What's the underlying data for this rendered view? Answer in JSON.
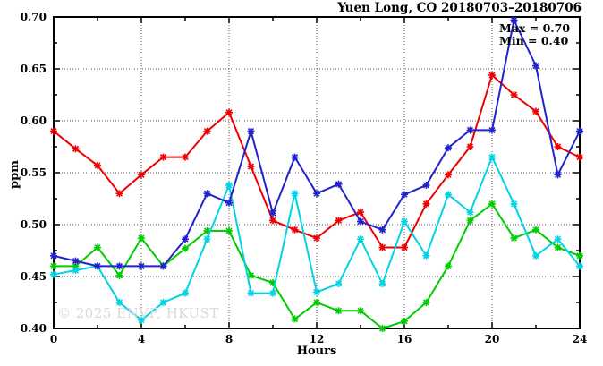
{
  "watermark": "© 2025 ENVF, HKUST",
  "chart_data": {
    "type": "line",
    "title": "Yuen Long, CO 20180703–20180706",
    "xlabel": "Hours",
    "ylabel": "ppm",
    "xlim": [
      0,
      24
    ],
    "ylim": [
      0.4,
      0.7
    ],
    "x_major_ticks": [
      0,
      4,
      8,
      12,
      16,
      20,
      24
    ],
    "x_minor_ticks": [
      2,
      6,
      10,
      14,
      18,
      22
    ],
    "y_major_ticks": [
      0.4,
      0.45,
      0.5,
      0.55,
      0.6,
      0.65,
      0.7
    ],
    "y_minor_ticks": [
      0.425,
      0.475,
      0.525,
      0.575,
      0.625,
      0.675
    ],
    "grid": {
      "style": "dotted",
      "color": "#555555",
      "x_lines": [
        4,
        8,
        12,
        16,
        20
      ],
      "y_lines": [
        0.45,
        0.5,
        0.55,
        0.6,
        0.65
      ]
    },
    "legend": "none",
    "marker": "asterisk",
    "annotations": [
      "Max = 0.70",
      "Min = 0.40"
    ],
    "x": [
      0,
      1,
      2,
      3,
      4,
      5,
      6,
      7,
      8,
      9,
      10,
      11,
      12,
      13,
      14,
      15,
      16,
      17,
      18,
      19,
      20,
      21,
      22,
      23,
      24
    ],
    "series": [
      {
        "name": "co-red",
        "color": "#ee0000",
        "values": [
          0.59,
          0.573,
          0.557,
          0.53,
          0.548,
          0.565,
          0.565,
          0.59,
          0.608,
          0.556,
          0.504,
          0.495,
          0.487,
          0.504,
          0.512,
          0.478,
          0.478,
          0.52,
          0.548,
          0.575,
          0.644,
          0.625,
          0.609,
          0.575,
          0.565
        ]
      },
      {
        "name": "co-green",
        "color": "#00cc00",
        "values": [
          0.46,
          0.46,
          0.478,
          0.451,
          0.487,
          0.46,
          0.477,
          0.494,
          0.494,
          0.451,
          0.444,
          0.409,
          0.425,
          0.417,
          0.417,
          0.4,
          0.407,
          0.425,
          0.46,
          0.504,
          0.52,
          0.487,
          0.495,
          0.478,
          0.47
        ]
      },
      {
        "name": "co-cyan",
        "color": "#00d4e4",
        "values": [
          0.452,
          0.456,
          0.46,
          0.425,
          0.408,
          0.425,
          0.434,
          0.486,
          0.538,
          0.434,
          0.434,
          0.53,
          0.435,
          0.443,
          0.486,
          0.443,
          0.503,
          0.47,
          0.529,
          0.512,
          0.565,
          0.52,
          0.47,
          0.486,
          0.46
        ]
      },
      {
        "name": "co-blue",
        "color": "#2222cc",
        "values": [
          0.47,
          0.465,
          0.46,
          0.46,
          0.46,
          0.46,
          0.486,
          0.53,
          0.521,
          0.59,
          0.511,
          0.565,
          0.53,
          0.539,
          0.503,
          0.495,
          0.529,
          0.538,
          0.574,
          0.591,
          0.591,
          0.697,
          0.653,
          0.548,
          0.59
        ]
      }
    ]
  }
}
